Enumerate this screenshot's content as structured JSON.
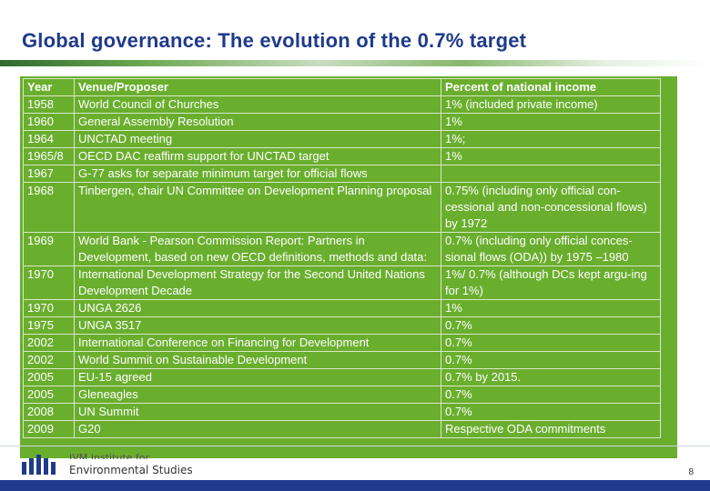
{
  "slide": {
    "title": "Global governance: The evolution of the 0.7% target",
    "page_number": "8"
  },
  "table": {
    "headers": [
      "Year",
      "Venue/Proposer",
      "Percent of national income"
    ],
    "rows": [
      [
        "1958",
        "World Council of Churches",
        "1% (included private income)"
      ],
      [
        "1960",
        "General Assembly Resolution",
        "1%"
      ],
      [
        "1964",
        "UNCTAD meeting",
        "1%;"
      ],
      [
        "1965/8",
        "OECD DAC reaffirm support for UNCTAD target",
        "1%"
      ],
      [
        "1967",
        "G-77 asks for separate minimum target for official flows",
        ""
      ],
      [
        "1968",
        "Tinbergen, chair UN Committee on Development Planning proposal",
        "0.75% (including only official con-cessional and non-concessional flows) by 1972"
      ],
      [
        "1969",
        "World Bank - Pearson Commission Report: Partners in Development, based on new OECD definitions, methods and data:",
        "0.7% (including only official conces-sional flows (ODA)) by 1975 –1980"
      ],
      [
        "1970",
        "International Development Strategy for the Second United Nations Development Decade",
        "1%/ 0.7% (although DCs kept argu-ing for 1%)"
      ],
      [
        "1970",
        "UNGA 2626",
        "1%"
      ],
      [
        "1975",
        "UNGA 3517",
        "0.7%"
      ],
      [
        "2002",
        "International Conference on Financing for Development",
        "0.7%"
      ],
      [
        "2002",
        "World Summit on Sustainable Development",
        "0.7%"
      ],
      [
        "2005",
        "EU-15 agreed",
        "0.7% by 2015."
      ],
      [
        "2005",
        "Gleneagles",
        "0.7%"
      ],
      [
        "2008",
        "UN Summit",
        "0.7%"
      ],
      [
        "2009",
        "G20",
        "Respective ODA commitments"
      ]
    ]
  },
  "footer": {
    "institute_top": "IVM Institute for",
    "institute": "Environmental Studies",
    "bar_color": "#1f3a8a"
  }
}
